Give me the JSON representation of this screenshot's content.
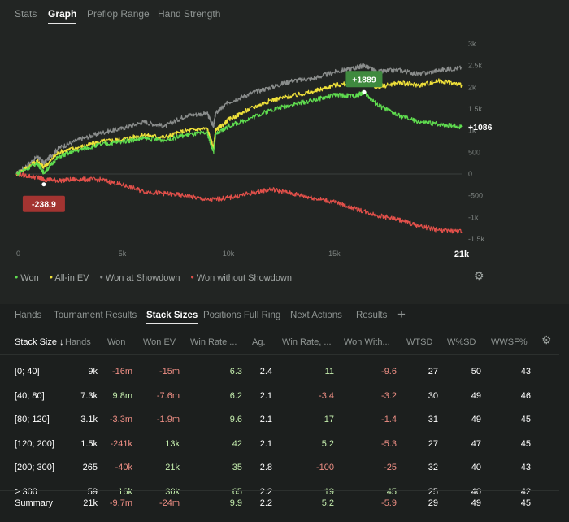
{
  "top_tabs": [
    "Stats",
    "Graph",
    "Preflop Range",
    "Hand Strength"
  ],
  "active_top_tab": "Graph",
  "chart_data": {
    "type": "line",
    "x_ticks": [
      "0",
      "5k",
      "10k",
      "15k",
      "21k"
    ],
    "x_tick_values": [
      0,
      5000,
      10000,
      15000,
      21000
    ],
    "y_ticks": [
      "3k",
      "2.5k",
      "2k",
      "1.5k",
      "1k",
      "500",
      "0",
      "-500",
      "-1k",
      "-1.5k"
    ],
    "y_tick_values": [
      3000,
      2500,
      2000,
      1500,
      1000,
      500,
      0,
      -500,
      -1000,
      -1500
    ],
    "xlim": [
      0,
      21000
    ],
    "ylim": [
      -1500,
      3000
    ],
    "grid": "horizontal line at 0",
    "legend_position": "bottom-left",
    "annotations": [
      {
        "label": "+1889",
        "x": 16400,
        "y": 1889,
        "color": "#3f8a3f"
      },
      {
        "label": "-238.9",
        "x": 1300,
        "y": -238.9,
        "color": "#a33431"
      }
    ],
    "end_label": "+1086",
    "series": [
      {
        "name": "Won",
        "color": "#5fdc4f",
        "x": [
          0,
          1000,
          1300,
          2000,
          3000,
          4000,
          5000,
          6000,
          7000,
          8000,
          9000,
          9300,
          9400,
          10000,
          11000,
          12000,
          13000,
          14000,
          15000,
          16000,
          16400,
          17000,
          18000,
          19000,
          20000,
          21000
        ],
        "y": [
          0,
          250,
          30,
          400,
          560,
          680,
          750,
          820,
          780,
          900,
          950,
          500,
          900,
          1100,
          1280,
          1480,
          1600,
          1700,
          1820,
          1800,
          1889,
          1600,
          1350,
          1200,
          1150,
          1086
        ]
      },
      {
        "name": "All-in EV",
        "color": "#f0e13a",
        "x": [
          0,
          1000,
          1300,
          2000,
          3000,
          4000,
          5000,
          6000,
          7000,
          8000,
          9000,
          9300,
          9400,
          10000,
          11000,
          12000,
          13000,
          14000,
          15000,
          16000,
          16400,
          17000,
          18000,
          19000,
          20000,
          21000
        ],
        "y": [
          0,
          300,
          150,
          500,
          620,
          750,
          800,
          900,
          850,
          1000,
          1050,
          600,
          1000,
          1250,
          1500,
          1700,
          1800,
          1900,
          2050,
          2100,
          2150,
          2000,
          2100,
          2050,
          2150,
          2050
        ]
      },
      {
        "name": "Won at Showdown",
        "color": "#8a8d8c",
        "x": [
          0,
          1000,
          1300,
          2000,
          3000,
          4000,
          5000,
          6000,
          7000,
          8000,
          9000,
          9300,
          9400,
          10000,
          11000,
          12000,
          13000,
          14000,
          15000,
          16000,
          16400,
          17000,
          18000,
          19000,
          20000,
          21000
        ],
        "y": [
          0,
          400,
          250,
          600,
          800,
          950,
          1050,
          1200,
          1100,
          1350,
          1400,
          1100,
          1400,
          1650,
          1850,
          2000,
          2150,
          2200,
          2350,
          2450,
          2500,
          2350,
          2400,
          2300,
          2400,
          2450
        ]
      },
      {
        "name": "Won without Showdown",
        "color": "#e2504a",
        "x": [
          0,
          1000,
          1300,
          2000,
          3000,
          4000,
          5000,
          6000,
          7000,
          8000,
          9000,
          10000,
          11000,
          12000,
          13000,
          14000,
          15000,
          16000,
          17000,
          18000,
          19000,
          20000,
          21000
        ],
        "y": [
          0,
          -80,
          -120,
          -150,
          -120,
          -130,
          -250,
          -400,
          -450,
          -500,
          -600,
          -550,
          -450,
          -350,
          -450,
          -550,
          -650,
          -800,
          -950,
          -1050,
          -1200,
          -1300,
          -1330
        ]
      }
    ]
  },
  "legend": [
    {
      "label": "Won",
      "color": "#5fdc4f"
    },
    {
      "label": "All-in EV",
      "color": "#f0e13a"
    },
    {
      "label": "Won at Showdown",
      "color": "#8a8d8c"
    },
    {
      "label": "Won without Showdown",
      "color": "#e2504a"
    }
  ],
  "settings_icon": "gear-icon",
  "bottom_tabs": [
    "Hands",
    "Tournament Results",
    "Stack Sizes",
    "Positions Full Ring",
    "Next Actions",
    "Results"
  ],
  "active_bottom_tab": "Stack Sizes",
  "add_tab_glyph": "+",
  "table": {
    "sort_arrow": "↓",
    "headers": [
      "Stack Size",
      "Hands",
      "Won",
      "Won EV",
      "Win Rate ...",
      "Ag.",
      "Win Rate, ...",
      "Won With...",
      "WTSD",
      "W%SD",
      "WWSF%"
    ],
    "rows": [
      {
        "cells": [
          "[0; 40]",
          "9k",
          "-16m",
          "-15m",
          "6.3",
          "2.4",
          "11",
          "-9.6",
          "27",
          "50",
          "43"
        ]
      },
      {
        "cells": [
          "[40; 80]",
          "7.3k",
          "9.8m",
          "-7.6m",
          "6.2",
          "2.1",
          "-3.4",
          "-3.2",
          "30",
          "49",
          "46"
        ]
      },
      {
        "cells": [
          "[80; 120]",
          "3.1k",
          "-3.3m",
          "-1.9m",
          "9.6",
          "2.1",
          "17",
          "-1.4",
          "31",
          "49",
          "45"
        ]
      },
      {
        "cells": [
          "[120; 200]",
          "1.5k",
          "-241k",
          "13k",
          "42",
          "2.1",
          "5.2",
          "-5.3",
          "27",
          "47",
          "45"
        ]
      },
      {
        "cells": [
          "[200; 300]",
          "265",
          "-40k",
          "21k",
          "35",
          "2.8",
          "-100",
          "-25",
          "32",
          "40",
          "43"
        ]
      },
      {
        "cells": [
          "> 300",
          "59",
          "16k",
          "30k",
          "65",
          "2.2",
          "19",
          "45",
          "25",
          "40",
          "42"
        ]
      }
    ],
    "summary": {
      "cells": [
        "Summary",
        "21k",
        "-9.7m",
        "-24m",
        "9.9",
        "2.2",
        "5.2",
        "-5.9",
        "29",
        "49",
        "45"
      ]
    }
  }
}
